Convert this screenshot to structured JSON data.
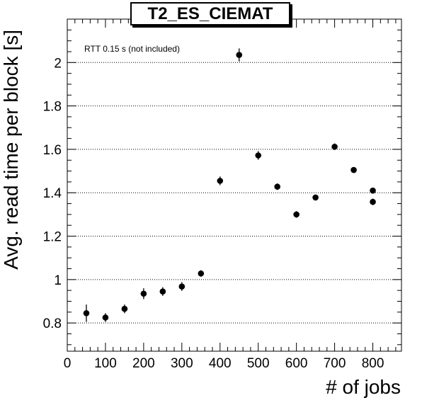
{
  "chart_data": {
    "type": "scatter",
    "title": "T2_ES_CIEMAT",
    "xlabel": "# of jobs",
    "ylabel": "Avg. read time per block [s]",
    "annotation": "RTT 0.15 s (not included)",
    "xlim": [
      0,
      875
    ],
    "ylim": [
      0.67,
      2.2
    ],
    "xticks": [
      0,
      100,
      200,
      300,
      400,
      500,
      600,
      700,
      800
    ],
    "yticks": [
      0.8,
      1,
      1.2,
      1.4,
      1.6,
      1.8,
      2
    ],
    "ytick_labels": [
      "0.8",
      "1",
      "1.2",
      "1.4",
      "1.6",
      "1.8",
      "2"
    ],
    "grid": "horizontal dotted at y ticks",
    "marker_color": "#000000",
    "points": [
      {
        "x": 50,
        "y": 0.845,
        "err": 0.04
      },
      {
        "x": 100,
        "y": 0.825,
        "err": 0.02
      },
      {
        "x": 150,
        "y": 0.865,
        "err": 0.02
      },
      {
        "x": 200,
        "y": 0.935,
        "err": 0.025
      },
      {
        "x": 250,
        "y": 0.945,
        "err": 0.02
      },
      {
        "x": 300,
        "y": 0.968,
        "err": 0.02
      },
      {
        "x": 350,
        "y": 1.028,
        "err": 0.015
      },
      {
        "x": 400,
        "y": 1.455,
        "err": 0.02
      },
      {
        "x": 450,
        "y": 2.035,
        "err": 0.03
      },
      {
        "x": 500,
        "y": 1.572,
        "err": 0.02
      },
      {
        "x": 550,
        "y": 1.428,
        "err": 0.015
      },
      {
        "x": 600,
        "y": 1.3,
        "err": 0.015
      },
      {
        "x": 650,
        "y": 1.378,
        "err": 0.012
      },
      {
        "x": 700,
        "y": 1.612,
        "err": 0.015
      },
      {
        "x": 750,
        "y": 1.505,
        "err": 0.012
      },
      {
        "x": 800,
        "y": 1.41,
        "err": 0.012
      },
      {
        "x": 800,
        "y": 1.358,
        "err": 0.015
      }
    ]
  }
}
